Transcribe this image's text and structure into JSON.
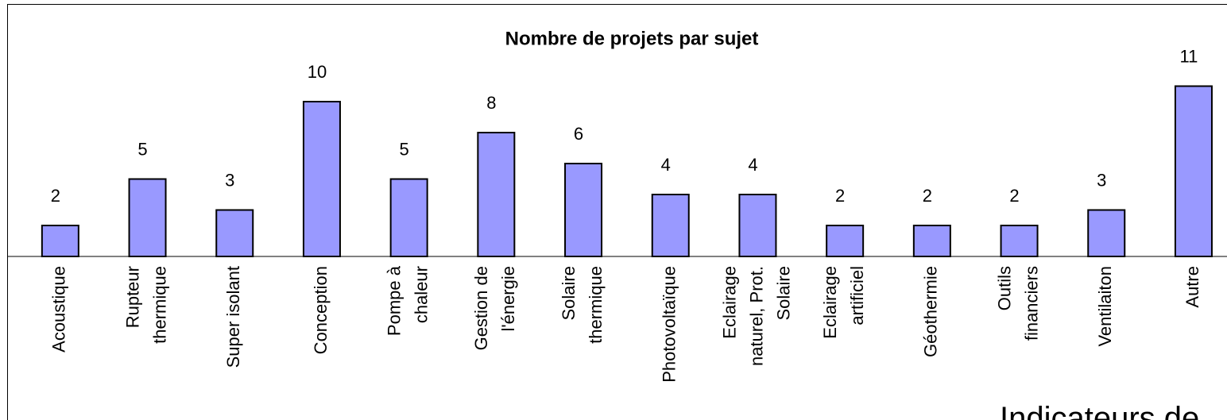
{
  "chart_data": {
    "type": "bar",
    "title": "Nombre de projets par sujet",
    "categories": [
      [
        "Acoustique"
      ],
      [
        "Rupteur",
        "thermique"
      ],
      [
        "Super isolant"
      ],
      [
        "Conception"
      ],
      [
        "Pompe à",
        "chaleur"
      ],
      [
        "Gestion de",
        "l'énergie"
      ],
      [
        "Solaire",
        "thermique"
      ],
      [
        "Photovoltaïque"
      ],
      [
        "Eclairage",
        "naturel, Prot.",
        "Solaire"
      ],
      [
        "Eclairage",
        "artificiel"
      ],
      [
        "Géothermie"
      ],
      [
        "Outils",
        "financiers"
      ],
      [
        "Ventilaiton"
      ],
      [
        "Autre"
      ]
    ],
    "values": [
      2,
      5,
      3,
      10,
      5,
      8,
      6,
      4,
      4,
      2,
      2,
      2,
      3,
      11
    ],
    "color": "#9999ff",
    "ylim": [
      0,
      12
    ],
    "annotation": "Indicateurs de"
  }
}
